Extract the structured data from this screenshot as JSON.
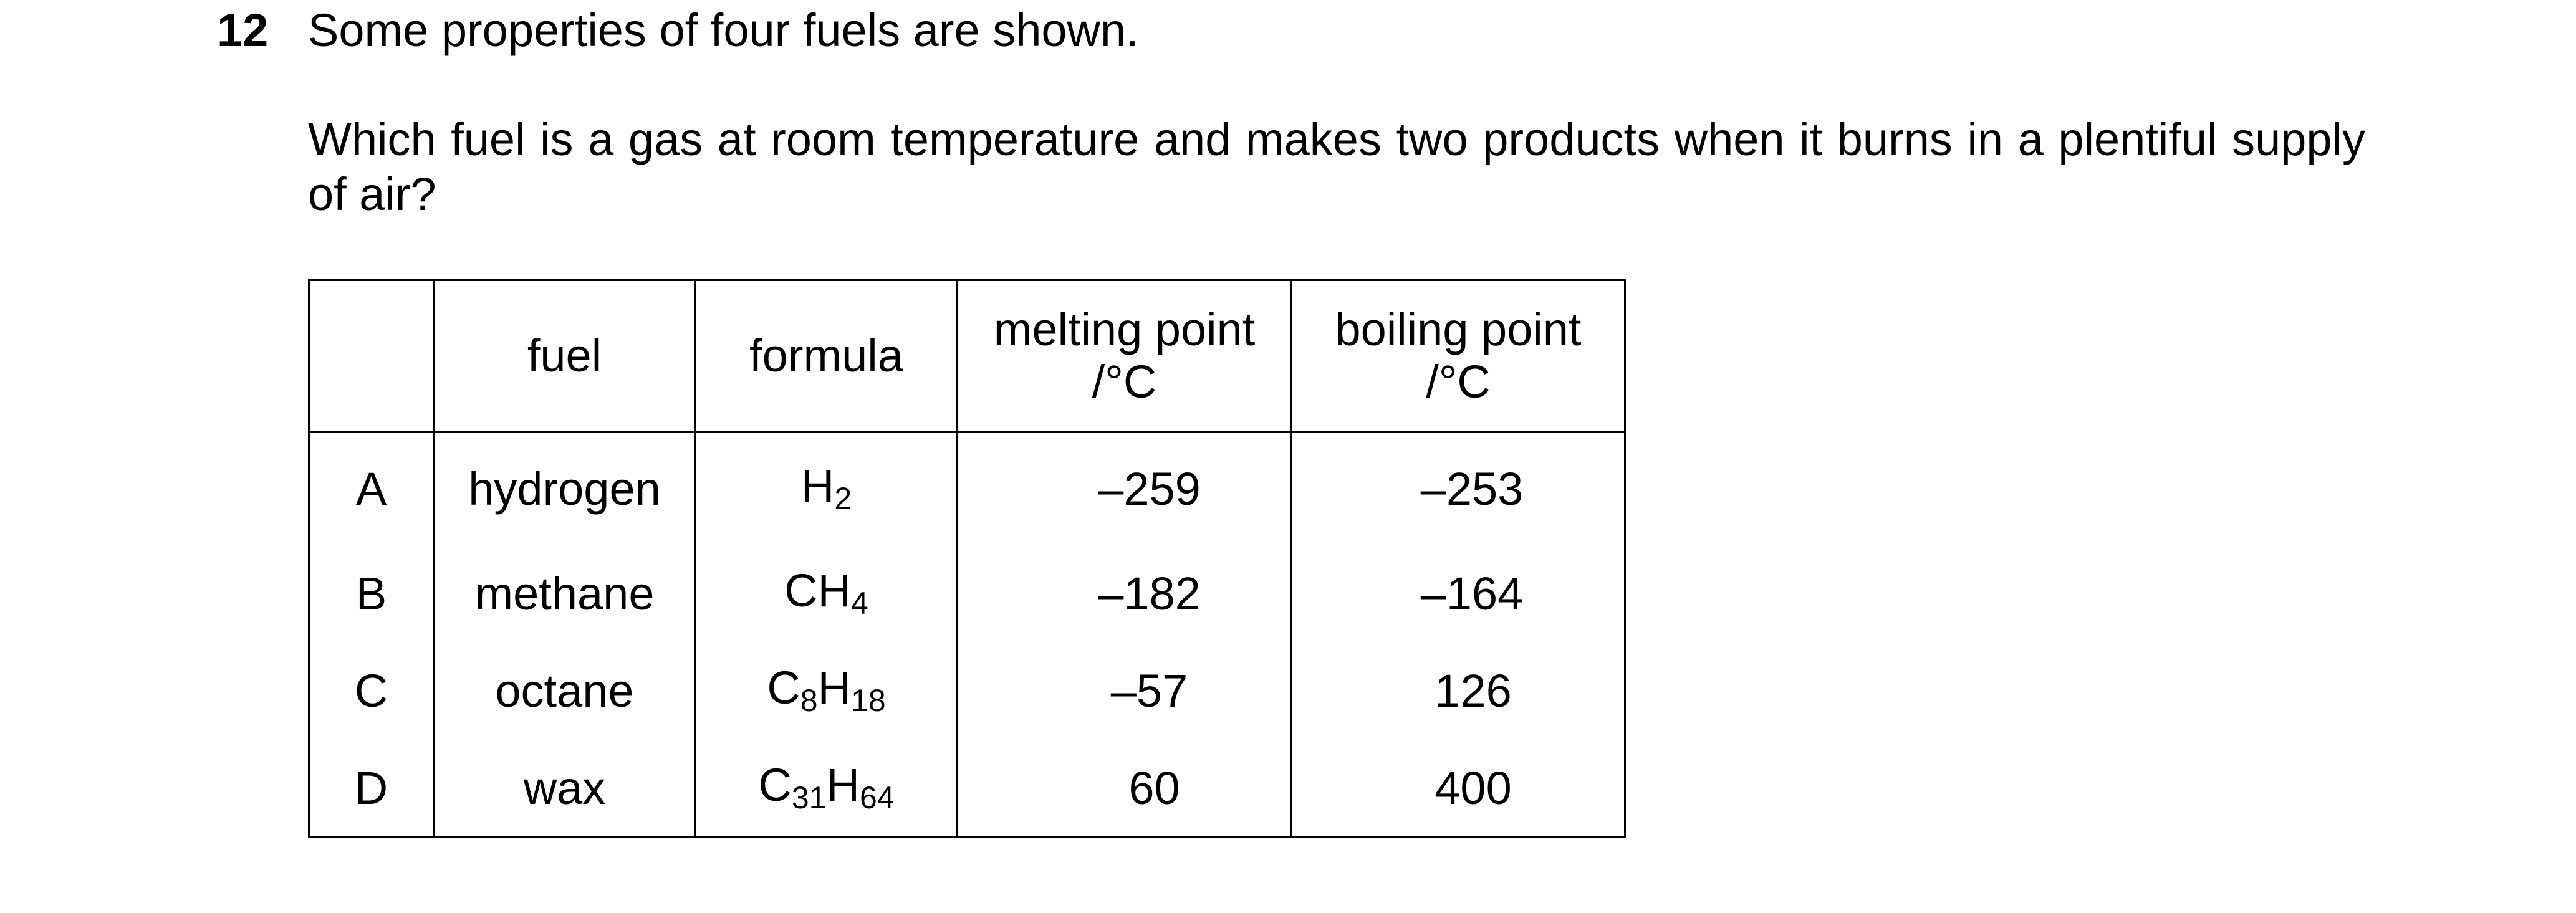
{
  "question": {
    "number": "12",
    "intro": "Some properties of four fuels are shown.",
    "prompt": "Which fuel is a gas at room temperature and makes two products when it burns in a plentiful supply of air?"
  },
  "table": {
    "headers": {
      "fuel": "fuel",
      "formula": "formula",
      "melting_point": "melting point",
      "melting_unit": "/°C",
      "boiling_point": "boiling point",
      "boiling_unit": "/°C"
    },
    "rows": [
      {
        "letter": "A",
        "fuel": "hydrogen",
        "formula": [
          {
            "el": "H",
            "n": "2"
          }
        ],
        "melting_point": "–259",
        "boiling_point": "–253"
      },
      {
        "letter": "B",
        "fuel": "methane",
        "formula": [
          {
            "el": "CH",
            "n": "4"
          }
        ],
        "melting_point": "–182",
        "boiling_point": "–164"
      },
      {
        "letter": "C",
        "fuel": "octane",
        "formula": [
          {
            "el": "C",
            "n": "8"
          },
          {
            "el": "H",
            "n": "18"
          }
        ],
        "melting_point": "–57",
        "boiling_point": "126"
      },
      {
        "letter": "D",
        "fuel": "wax",
        "formula": [
          {
            "el": "C",
            "n": "31"
          },
          {
            "el": "H",
            "n": "64"
          }
        ],
        "melting_point": "60",
        "boiling_point": "400"
      }
    ]
  }
}
